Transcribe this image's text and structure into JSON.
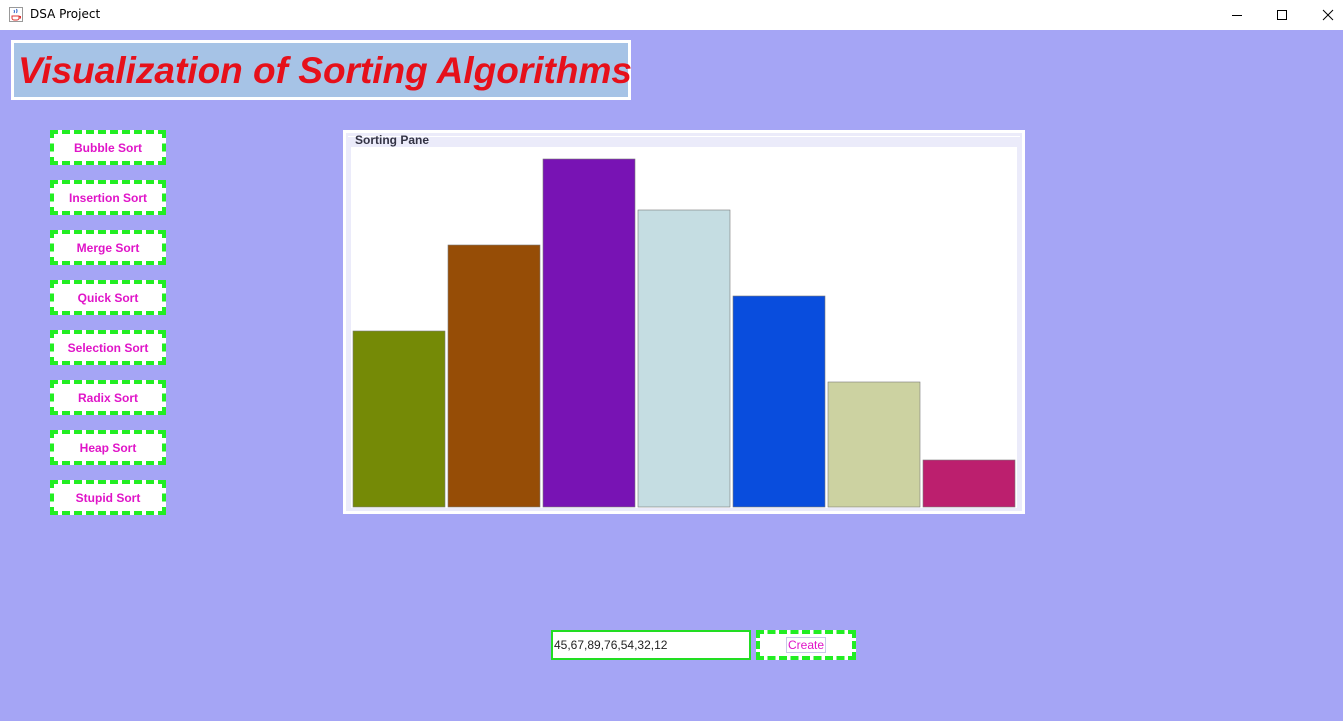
{
  "window": {
    "title": "DSA Project",
    "icon": "java-cup-icon",
    "background": "#a5a5f5"
  },
  "heading": "Visualization of Sorting Algorithms",
  "algorithms": [
    {
      "label": "Bubble Sort"
    },
    {
      "label": "Insertion Sort"
    },
    {
      "label": "Merge Sort"
    },
    {
      "label": "Quick Sort"
    },
    {
      "label": "Selection Sort"
    },
    {
      "label": "Radix Sort"
    },
    {
      "label": "Heap Sort"
    },
    {
      "label": "Stupid Sort"
    }
  ],
  "pane": {
    "title": "Sorting Pane"
  },
  "input": {
    "value": "45,67,89,76,54,32,12",
    "placeholder": ""
  },
  "create_label": "Create",
  "colors": {
    "accent_text": "#e014c8",
    "button_border": "#22ee22",
    "heading_text": "#e6101a"
  },
  "chart_data": {
    "type": "bar",
    "categories": [
      "",
      "",
      "",
      "",
      "",
      "",
      ""
    ],
    "values": [
      45,
      67,
      89,
      76,
      54,
      32,
      12
    ],
    "bar_colors": [
      "#758a06",
      "#964d06",
      "#7813b4",
      "#c5dde2",
      "#094ddd",
      "#ccd2a1",
      "#bc1f6e"
    ],
    "ylim": [
      0,
      90
    ],
    "grid": false,
    "legend": "none"
  }
}
